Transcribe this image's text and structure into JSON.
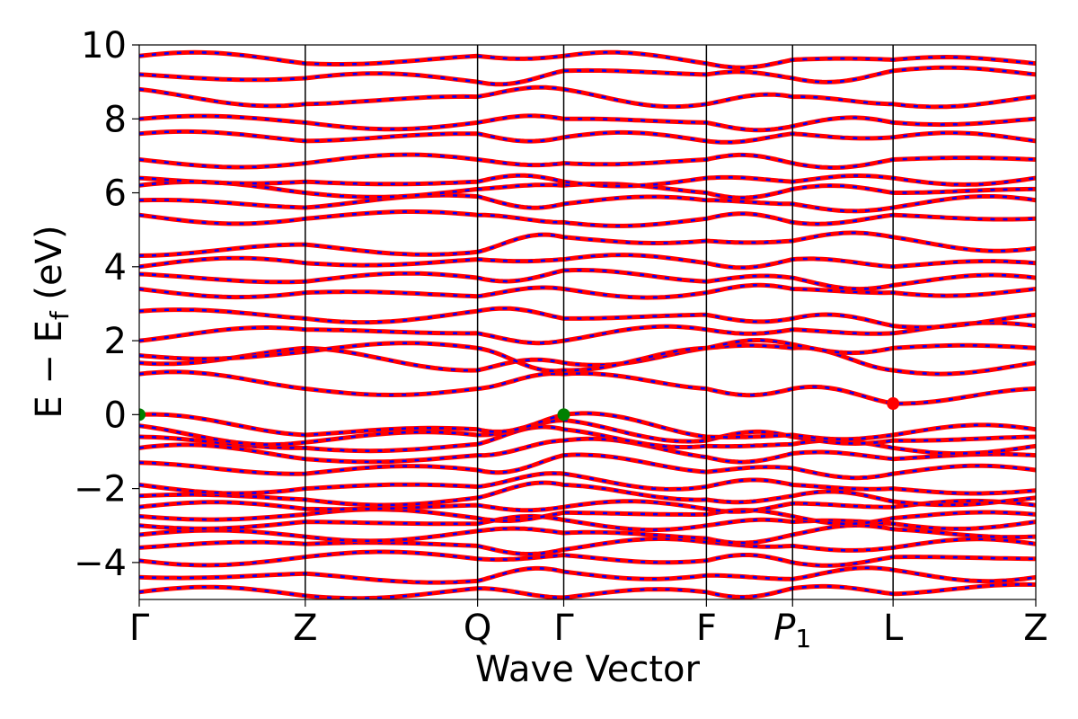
{
  "chart_data": {
    "type": "line",
    "title": "",
    "xlabel": "Wave Vector",
    "ylabel": "E − E_f (eV)",
    "ylabel_parts": {
      "main": "E − E",
      "sub": "f",
      "unit": " (eV)"
    },
    "ylim": [
      -5,
      10
    ],
    "yticks": [
      -4,
      -2,
      0,
      2,
      4,
      6,
      8,
      10
    ],
    "ytick_labels": [
      "−4",
      "−2",
      "0",
      "2",
      "4",
      "6",
      "8",
      "10"
    ],
    "x_segments_relative_length": [
      1.85,
      1.92,
      0.96,
      1.59,
      0.96,
      1.12,
      1.59
    ],
    "kpoints": [
      {
        "label": "Γ",
        "italic": false,
        "sub": ""
      },
      {
        "label": "Z",
        "italic": false,
        "sub": ""
      },
      {
        "label": "Q",
        "italic": false,
        "sub": ""
      },
      {
        "label": "Γ",
        "italic": false,
        "sub": ""
      },
      {
        "label": "F",
        "italic": false,
        "sub": ""
      },
      {
        "label": "P",
        "italic": true,
        "sub": "1"
      },
      {
        "label": "L",
        "italic": false,
        "sub": ""
      },
      {
        "label": "Z",
        "italic": false,
        "sub": ""
      }
    ],
    "band_style": {
      "outer_color": "#ff0000",
      "dash_color": "#0000ff",
      "description": "spin-up solid red overlaid by spin-down dashed blue"
    },
    "band_energies_at_kpoints": [
      [
        -4.8,
        -4.9,
        -4.7,
        -4.95,
        -4.8,
        -4.7,
        -4.85,
        -4.6
      ],
      [
        -4.4,
        -4.3,
        -4.5,
        -4.25,
        -4.35,
        -4.45,
        -4.2,
        -4.4
      ],
      [
        -3.95,
        -3.85,
        -3.9,
        -3.8,
        -3.95,
        -4.0,
        -3.85,
        -3.9
      ],
      [
        -3.6,
        -3.5,
        -3.55,
        -3.65,
        -3.45,
        -3.55,
        -3.6,
        -3.5
      ],
      [
        -3.25,
        -3.3,
        -3.15,
        -3.2,
        -3.35,
        -3.25,
        -3.1,
        -3.3
      ],
      [
        -3.0,
        -2.9,
        -2.95,
        -2.85,
        -3.0,
        -2.9,
        -2.95,
        -2.9
      ],
      [
        -2.75,
        -2.7,
        -2.8,
        -2.65,
        -2.7,
        -2.75,
        -2.8,
        -2.7
      ],
      [
        -2.5,
        -2.55,
        -2.45,
        -2.5,
        -2.55,
        -2.4,
        -2.5,
        -2.45
      ],
      [
        -2.2,
        -2.3,
        -2.25,
        -1.9,
        -2.3,
        -2.2,
        -2.35,
        -2.25
      ],
      [
        -1.9,
        -2.0,
        -1.95,
        -1.6,
        -1.95,
        -1.9,
        -2.0,
        -2.05
      ],
      [
        -1.3,
        -1.6,
        -1.5,
        -1.1,
        -1.55,
        -1.45,
        -1.6,
        -1.5
      ],
      [
        -0.9,
        -1.2,
        -1.1,
        -0.7,
        -1.15,
        -1.05,
        -1.2,
        -1.1
      ],
      [
        -0.6,
        -0.9,
        -0.8,
        -0.4,
        -0.85,
        -0.8,
        -0.9,
        -0.85
      ],
      [
        -0.3,
        -0.75,
        -0.55,
        -0.15,
        -0.7,
        -0.6,
        -0.7,
        -0.6
      ],
      [
        0.0,
        -0.55,
        -0.4,
        0.0,
        -0.6,
        -0.55,
        -0.55,
        -0.4
      ],
      [
        1.1,
        0.7,
        0.7,
        1.1,
        0.7,
        0.7,
        0.3,
        0.7
      ],
      [
        1.4,
        1.8,
        1.2,
        1.4,
        1.8,
        1.8,
        1.2,
        1.4
      ],
      [
        1.6,
        1.7,
        1.8,
        1.2,
        1.8,
        1.9,
        1.8,
        1.8
      ],
      [
        2.0,
        2.3,
        2.2,
        2.0,
        2.3,
        2.3,
        2.2,
        2.4
      ],
      [
        2.8,
        2.6,
        2.8,
        2.6,
        2.7,
        2.6,
        2.4,
        2.7
      ],
      [
        3.4,
        3.3,
        3.2,
        3.4,
        3.3,
        3.4,
        3.3,
        3.4
      ],
      [
        3.8,
        3.6,
        3.7,
        3.9,
        3.6,
        3.7,
        3.5,
        3.7
      ],
      [
        4.0,
        4.1,
        4.2,
        4.2,
        4.1,
        4.2,
        4.0,
        4.1
      ],
      [
        4.3,
        4.6,
        4.4,
        4.8,
        4.7,
        4.7,
        4.8,
        4.5
      ],
      [
        5.4,
        5.3,
        5.4,
        5.2,
        5.3,
        5.2,
        5.4,
        5.3
      ],
      [
        5.8,
        5.6,
        5.9,
        5.7,
        5.8,
        5.7,
        5.6,
        5.8
      ],
      [
        6.2,
        6.0,
        6.1,
        6.2,
        6.0,
        6.1,
        6.0,
        6.1
      ],
      [
        6.4,
        6.3,
        6.3,
        6.3,
        6.4,
        6.3,
        6.4,
        6.4
      ],
      [
        6.9,
        6.8,
        6.9,
        6.8,
        6.9,
        6.8,
        6.9,
        6.9
      ],
      [
        7.6,
        7.4,
        7.6,
        7.5,
        7.4,
        7.6,
        7.5,
        7.4
      ],
      [
        8.0,
        7.9,
        7.9,
        8.0,
        7.9,
        7.8,
        7.9,
        8.0
      ],
      [
        8.8,
        8.4,
        8.6,
        8.8,
        8.4,
        8.6,
        8.4,
        8.6
      ],
      [
        9.2,
        9.1,
        9.0,
        9.3,
        9.2,
        9.1,
        9.3,
        9.2
      ],
      [
        9.7,
        9.5,
        9.7,
        9.7,
        9.5,
        9.6,
        9.6,
        9.5
      ]
    ],
    "markers": [
      {
        "kpoint_index": 0,
        "energy": 0.0,
        "color": "#008000",
        "kind": "VBM"
      },
      {
        "kpoint_index": 3,
        "energy": 0.0,
        "color": "#008000",
        "kind": "VBM"
      },
      {
        "kpoint_index": 6,
        "energy": 0.3,
        "color": "#ff0000",
        "kind": "CBM"
      }
    ],
    "grid": false,
    "legend": "none"
  }
}
